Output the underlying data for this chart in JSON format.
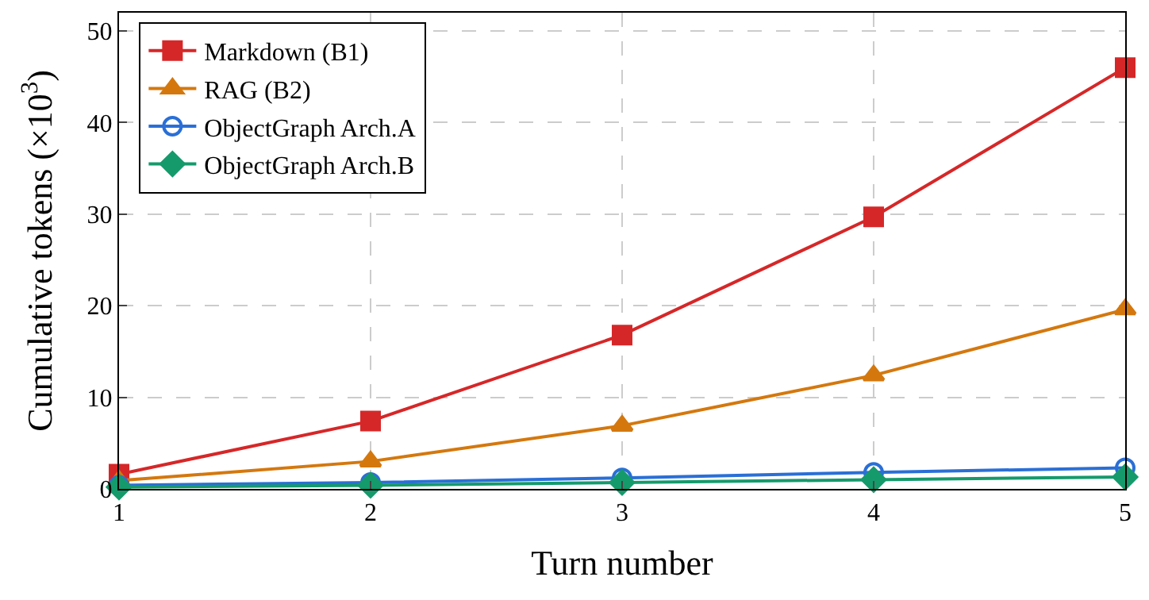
{
  "chart_data": {
    "type": "line",
    "xlabel": "Turn number",
    "ylabel": "Cumulative tokens (×10$^{3}$)",
    "x": [
      1,
      2,
      3,
      4,
      5
    ],
    "xlim": [
      1,
      5
    ],
    "xticks": [
      1,
      2,
      3,
      4,
      5
    ],
    "ylim": [
      0,
      52
    ],
    "yticks": [
      0,
      10,
      20,
      30,
      40,
      50
    ],
    "grid": true,
    "legend": "top left",
    "series": [
      {
        "name": "Markdown (B1)",
        "color": "#d62728",
        "marker": "square",
        "values": [
          1.6,
          7.4,
          16.8,
          29.7,
          46
        ]
      },
      {
        "name": "RAG (B2)",
        "color": "#d4780e",
        "marker": "triangle",
        "values": [
          0.9,
          3.0,
          6.9,
          12.4,
          19.6
        ]
      },
      {
        "name": "ObjectGraph Arch.A",
        "color": "#2a6fd6",
        "marker": "circle-open",
        "values": [
          0.4,
          0.7,
          1.2,
          1.8,
          2.3
        ]
      },
      {
        "name": "ObjectGraph Arch.B",
        "color": "#159a6c",
        "marker": "diamond",
        "values": [
          0.2,
          0.4,
          0.7,
          1.0,
          1.3
        ]
      }
    ]
  }
}
